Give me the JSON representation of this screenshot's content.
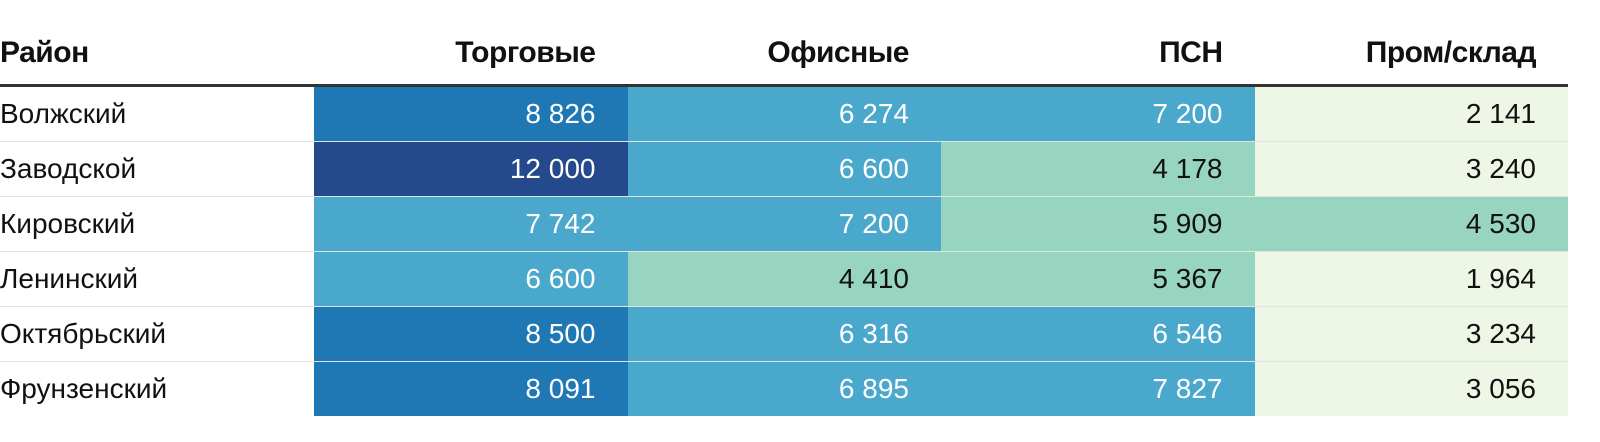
{
  "chart_data": {
    "type": "table",
    "columns": [
      "Район",
      "Торговые",
      "Офисные",
      "ПСН",
      "Пром/склад"
    ],
    "rows": [
      {
        "district": "Волжский",
        "values": [
          8826,
          6274,
          7200,
          2141
        ],
        "labels": [
          "8 826",
          "6 274",
          "7 200",
          "2 141"
        ]
      },
      {
        "district": "Заводской",
        "values": [
          12000,
          6600,
          4178,
          3240
        ],
        "labels": [
          "12 000",
          "6 600",
          "4 178",
          "3 240"
        ]
      },
      {
        "district": "Кировский",
        "values": [
          7742,
          7200,
          5909,
          4530
        ],
        "labels": [
          "7 742",
          "7 200",
          "5 909",
          "4 530"
        ]
      },
      {
        "district": "Ленинский",
        "values": [
          6600,
          4410,
          5367,
          1964
        ],
        "labels": [
          "6 600",
          "4 410",
          "5 367",
          "1 964"
        ]
      },
      {
        "district": "Октябрьский",
        "values": [
          8500,
          6316,
          6546,
          3234
        ],
        "labels": [
          "8 500",
          "6 316",
          "6 546",
          "3 234"
        ]
      },
      {
        "district": "Фрунзенский",
        "values": [
          8091,
          6895,
          7827,
          3056
        ],
        "labels": [
          "8 091",
          "6 895",
          "7 827",
          "3 056"
        ]
      }
    ],
    "color_scale": [
      {
        "min": 0,
        "max": 3999,
        "bg": "#eef7e6",
        "fg": "#111111"
      },
      {
        "min": 4000,
        "max": 5999,
        "bg": "#97d5c0",
        "fg": "#111111"
      },
      {
        "min": 6000,
        "max": 7999,
        "bg": "#4aa8cc",
        "fg": "#ffffff"
      },
      {
        "min": 8000,
        "max": 9999,
        "bg": "#1f78b4",
        "fg": "#ffffff"
      },
      {
        "min": 10000,
        "max": 99999,
        "bg": "#24498d",
        "fg": "#ffffff"
      }
    ]
  }
}
